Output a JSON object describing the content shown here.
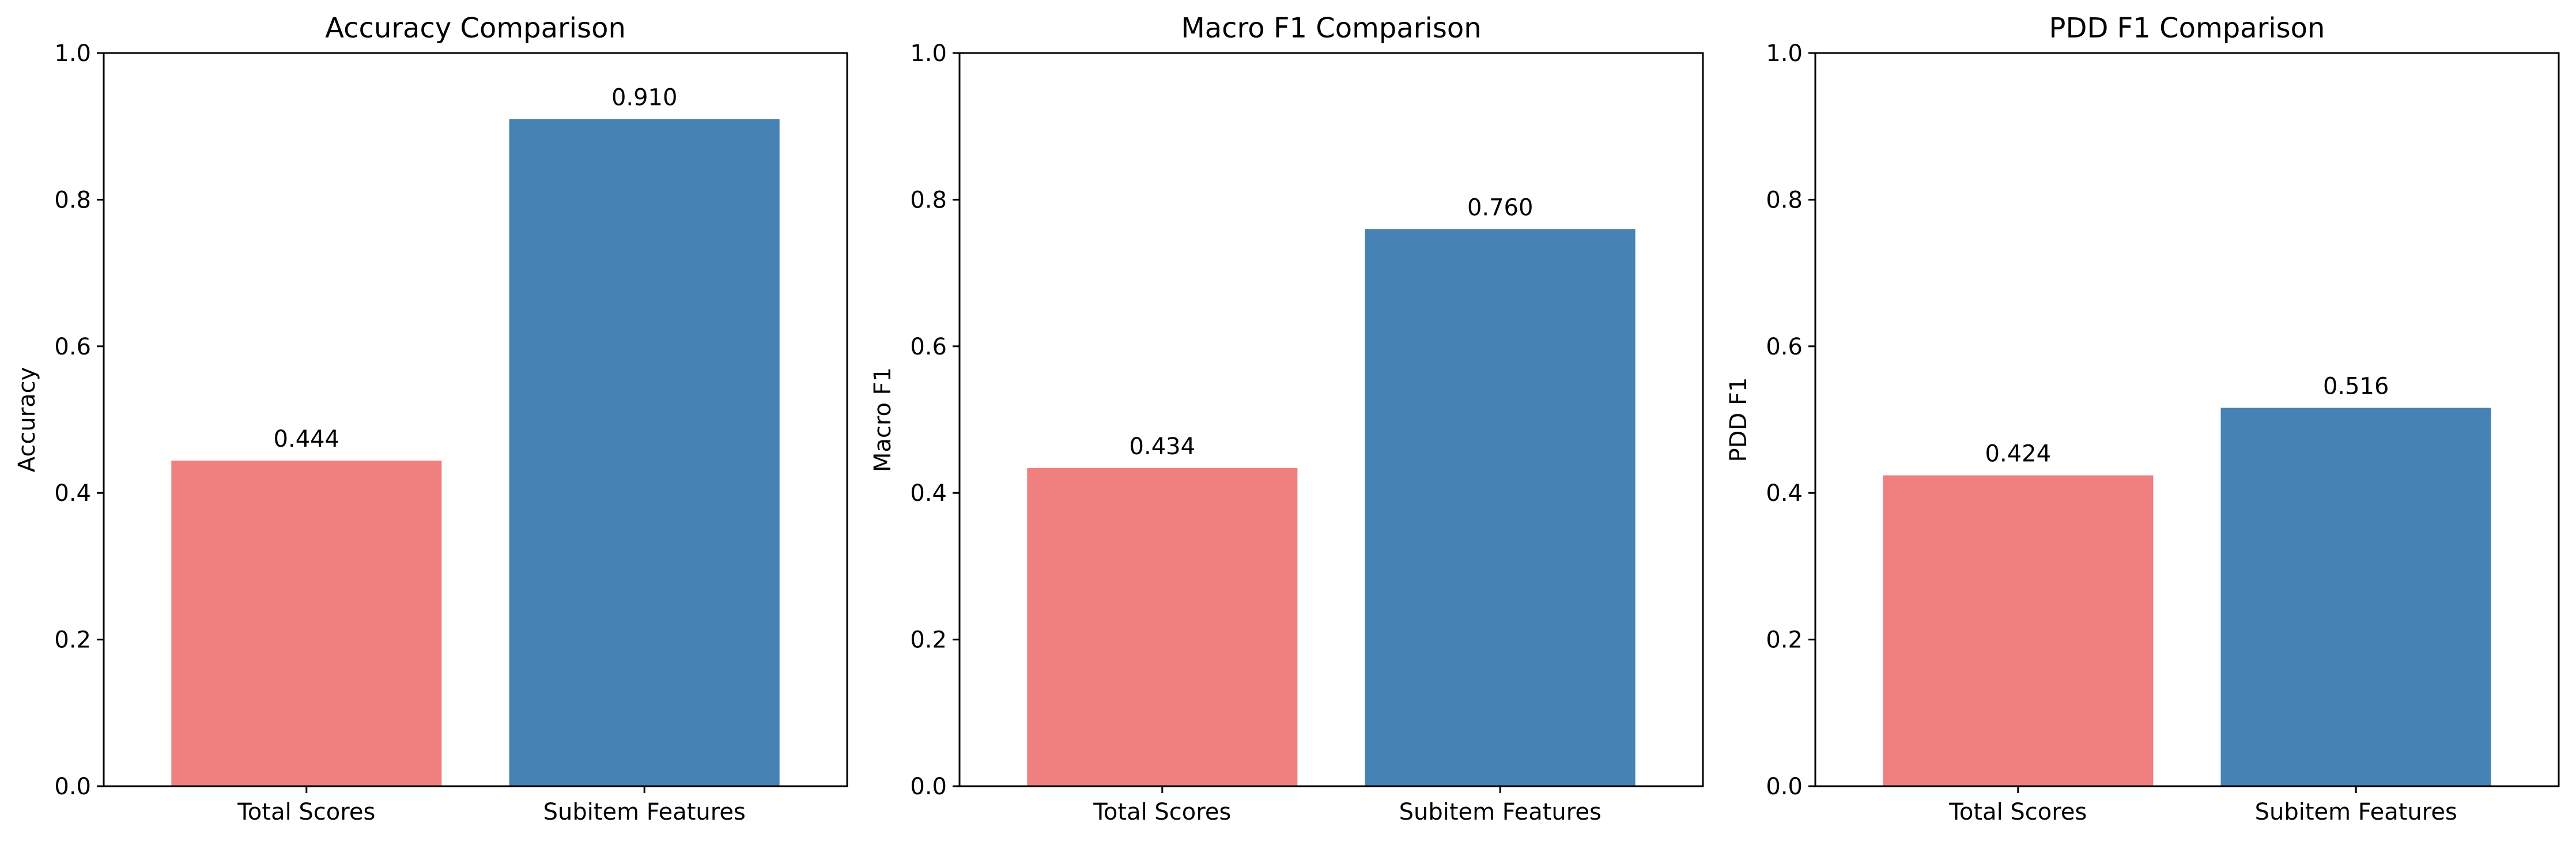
{
  "chart_data": [
    {
      "type": "bar",
      "title": "Accuracy Comparison",
      "xlabel": "",
      "ylabel": "Accuracy",
      "categories": [
        "Total Scores",
        "Subitem Features"
      ],
      "values": [
        0.444,
        0.91
      ],
      "value_labels": [
        "0.444",
        "0.910"
      ],
      "colors": [
        "#f08080",
        "#4682b4"
      ],
      "ylim": [
        0,
        1.0
      ],
      "yticks": [
        0.0,
        0.2,
        0.4,
        0.6,
        0.8,
        1.0
      ],
      "ytick_labels": [
        "0.0",
        "0.2",
        "0.4",
        "0.6",
        "0.8",
        "1.0"
      ],
      "grid": false,
      "legend": "none"
    },
    {
      "type": "bar",
      "title": "Macro F1 Comparison",
      "xlabel": "",
      "ylabel": "Macro F1",
      "categories": [
        "Total Scores",
        "Subitem Features"
      ],
      "values": [
        0.434,
        0.76
      ],
      "value_labels": [
        "0.434",
        "0.760"
      ],
      "colors": [
        "#f08080",
        "#4682b4"
      ],
      "ylim": [
        0,
        1.0
      ],
      "yticks": [
        0.0,
        0.2,
        0.4,
        0.6,
        0.8,
        1.0
      ],
      "ytick_labels": [
        "0.0",
        "0.2",
        "0.4",
        "0.6",
        "0.8",
        "1.0"
      ],
      "grid": false,
      "legend": "none"
    },
    {
      "type": "bar",
      "title": "PDD F1 Comparison",
      "xlabel": "",
      "ylabel": "PDD F1",
      "categories": [
        "Total Scores",
        "Subitem Features"
      ],
      "values": [
        0.424,
        0.516
      ],
      "value_labels": [
        "0.424",
        "0.516"
      ],
      "colors": [
        "#f08080",
        "#4682b4"
      ],
      "ylim": [
        0,
        1.0
      ],
      "yticks": [
        0.0,
        0.2,
        0.4,
        0.6,
        0.8,
        1.0
      ],
      "ytick_labels": [
        "0.0",
        "0.2",
        "0.4",
        "0.6",
        "0.8",
        "1.0"
      ],
      "grid": false,
      "legend": "none"
    }
  ]
}
